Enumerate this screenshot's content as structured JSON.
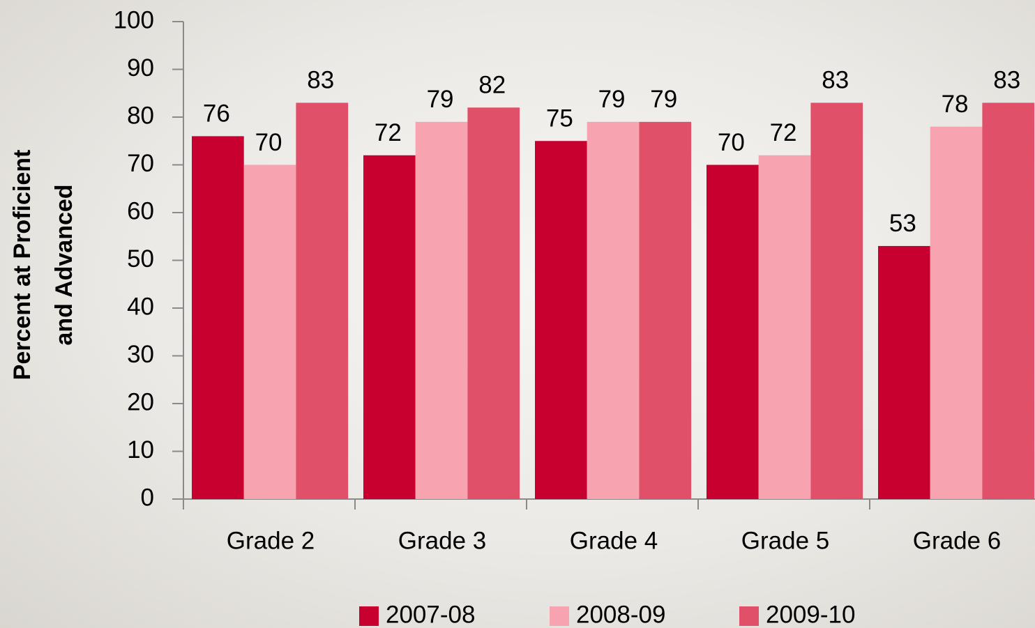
{
  "chart_data": {
    "type": "bar",
    "ylabel": [
      "Percent at Proficient",
      "and Advanced"
    ],
    "categories": [
      "Grade 2",
      "Grade 3",
      "Grade 4",
      "Grade 5",
      "Grade 6"
    ],
    "series": [
      {
        "name": "2007-08",
        "color": "#c8002f",
        "values": [
          76,
          72,
          75,
          70,
          53
        ]
      },
      {
        "name": "2008-09",
        "color": "#f7a3b0",
        "values": [
          70,
          79,
          79,
          72,
          78
        ]
      },
      {
        "name": "2009-10",
        "color": "#e05068",
        "values": [
          83,
          82,
          79,
          83,
          83
        ]
      }
    ],
    "ylim": [
      0,
      100
    ],
    "yticks": [
      0,
      10,
      20,
      30,
      40,
      50,
      60,
      70,
      80,
      90,
      100
    ],
    "data_labels": true,
    "legend": "bottom"
  }
}
